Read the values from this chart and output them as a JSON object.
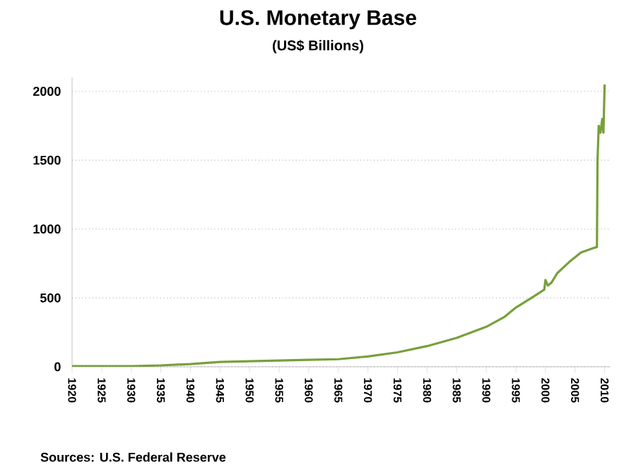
{
  "chart_data": {
    "type": "line",
    "title": "U.S. Monetary Base",
    "subtitle": "(US$ Billions)",
    "x": [
      1920,
      1925,
      1930,
      1935,
      1940,
      1945,
      1950,
      1955,
      1960,
      1965,
      1970,
      1975,
      1980,
      1985,
      1990,
      1993,
      1995,
      1998,
      1999.8,
      2000,
      2000.4,
      2001,
      2002,
      2004,
      2006,
      2008,
      2008.7,
      2008.8,
      2009,
      2009.3,
      2009.6,
      2009.8,
      2010
    ],
    "series": [
      {
        "color": "#77a03a",
        "values": [
          5,
          5,
          5,
          10,
          20,
          35,
          40,
          45,
          50,
          55,
          75,
          105,
          150,
          210,
          290,
          360,
          430,
          510,
          560,
          630,
          590,
          610,
          680,
          760,
          830,
          860,
          870,
          1500,
          1750,
          1700,
          1800,
          1700,
          2050
        ]
      }
    ],
    "xlim": [
      1920,
      2011
    ],
    "ylim": [
      0,
      2100
    ],
    "xticks": [
      1920,
      1925,
      1930,
      1935,
      1940,
      1945,
      1950,
      1955,
      1960,
      1965,
      1970,
      1975,
      1980,
      1985,
      1990,
      1995,
      2000,
      2005,
      2010
    ],
    "yticks": [
      0,
      500,
      1000,
      1500,
      2000
    ],
    "grid": "y",
    "marker": "none",
    "line_style": "solid",
    "annotations": [
      "Sources: U.S. Federal Reserve"
    ]
  }
}
